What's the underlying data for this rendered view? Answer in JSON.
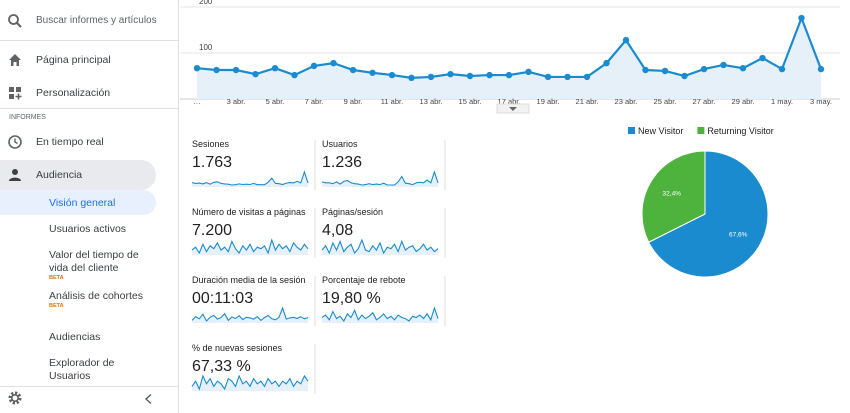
{
  "sidebar": {
    "search": "Buscar informes y artículos",
    "items": [
      "Página principal",
      "Personalización"
    ],
    "section": "INFORMES",
    "realtime": "En tiempo real",
    "audience": "Audiencia",
    "subitems": [
      {
        "label": "Visión general"
      },
      {
        "label": "Usuarios activos"
      },
      {
        "label": "Valor del tiempo de vida del cliente",
        "badge": "BETA"
      },
      {
        "label": "Análisis de cohortes",
        "badge": "BETA"
      },
      {
        "label": "Audiencias"
      },
      {
        "label": "Explorador de Usuarios"
      }
    ]
  },
  "chart_data": [
    {
      "type": "line",
      "categories": [
        "…",
        null,
        "3 abr.",
        null,
        "5 abr.",
        null,
        "7 abr.",
        null,
        "9 abr.",
        null,
        "11 abr.",
        null,
        "13 abr.",
        null,
        "15 abr.",
        null,
        "17 abr.",
        null,
        "19 abr.",
        null,
        "21 abr.",
        null,
        "23 abr.",
        null,
        "25 abr.",
        null,
        "27 abr.",
        null,
        "29 abr.",
        null,
        "1 may.",
        null,
        "3 may."
      ],
      "values": [
        67,
        63,
        63,
        54,
        67,
        52,
        72,
        78,
        63,
        57,
        52,
        46,
        48,
        54,
        50,
        52,
        52,
        59,
        48,
        48,
        48,
        78,
        128,
        63,
        61,
        50,
        65,
        74,
        67,
        89,
        65,
        176,
        65
      ],
      "color": "#1a8bce",
      "ylim": [
        0,
        200
      ],
      "yticks": [
        100,
        200
      ],
      "grid": true
    },
    {
      "type": "pie",
      "categories": [
        "New Visitor",
        "Returning Visitor"
      ],
      "values": [
        67.6,
        32.4
      ],
      "value_labels": [
        "67,6%",
        "32,4%"
      ],
      "colors": [
        "#1a8bce",
        "#4db33d"
      ],
      "legend": "top"
    }
  ],
  "metrics": [
    {
      "label": "Sesiones",
      "value": "1.763",
      "sparkline": [
        55,
        52,
        53,
        50,
        55,
        49,
        56,
        58,
        52,
        50,
        49,
        46,
        47,
        50,
        48,
        49,
        48,
        52,
        47,
        47,
        47,
        56,
        72,
        52,
        51,
        48,
        53,
        55,
        54,
        60,
        54,
        95,
        54
      ]
    },
    {
      "label": "Usuarios",
      "value": "1.236",
      "sparkline": [
        40,
        38,
        38,
        36,
        40,
        35,
        41,
        43,
        38,
        36,
        35,
        33,
        34,
        36,
        34,
        35,
        34,
        37,
        33,
        33,
        33,
        40,
        52,
        37,
        36,
        34,
        38,
        39,
        38,
        44,
        38,
        62,
        38
      ]
    },
    {
      "label": "Número de visitas a páginas",
      "value": "7.200",
      "sparkline": [
        220,
        240,
        200,
        260,
        210,
        250,
        230,
        270,
        220,
        240,
        210,
        280,
        230,
        200,
        250,
        220,
        260,
        210,
        240,
        230,
        250,
        200,
        290,
        220,
        260,
        230,
        250,
        210,
        270,
        240,
        220,
        260,
        230
      ]
    },
    {
      "label": "Páginas/sesión",
      "value": "4,08",
      "sparkline": [
        4.0,
        4.3,
        3.8,
        4.5,
        4.0,
        4.6,
        3.9,
        4.2,
        4.4,
        3.8,
        4.1,
        4.7,
        4.0,
        3.9,
        4.3,
        4.0,
        4.5,
        3.8,
        4.2,
        4.1,
        4.4,
        3.9,
        4.6,
        4.0,
        4.2,
        4.3,
        3.9,
        4.1,
        4.4,
        4.0,
        4.2,
        3.9,
        4.1
      ]
    },
    {
      "label": "Duración media de la sesión",
      "value": "00:11:03",
      "sparkline": [
        600,
        720,
        650,
        800,
        580,
        700,
        760,
        640,
        690,
        820,
        600,
        710,
        660,
        750,
        630,
        700,
        680,
        640,
        720,
        600,
        690,
        760,
        650,
        620,
        700,
        1000,
        640,
        680,
        700,
        660,
        720,
        650,
        690
      ]
    },
    {
      "label": "Porcentaje de rebote",
      "value": "19,80 %",
      "sparkline": [
        20,
        22,
        18,
        25,
        19,
        21,
        17,
        23,
        20,
        26,
        18,
        22,
        19,
        21,
        24,
        18,
        20,
        23,
        19,
        21,
        18,
        22,
        20,
        19,
        17,
        21,
        20,
        22,
        19,
        23,
        18,
        28,
        19
      ]
    },
    {
      "label": "% de nuevas sesiones",
      "value": "67,33 %",
      "sparkline": [
        66,
        68,
        65,
        70,
        67,
        69,
        66,
        68,
        67,
        65,
        69,
        68,
        66,
        70,
        67,
        68,
        66,
        69,
        67,
        68,
        66,
        69,
        67,
        68,
        66,
        68,
        67,
        69,
        66,
        68,
        67,
        70,
        68
      ]
    }
  ]
}
